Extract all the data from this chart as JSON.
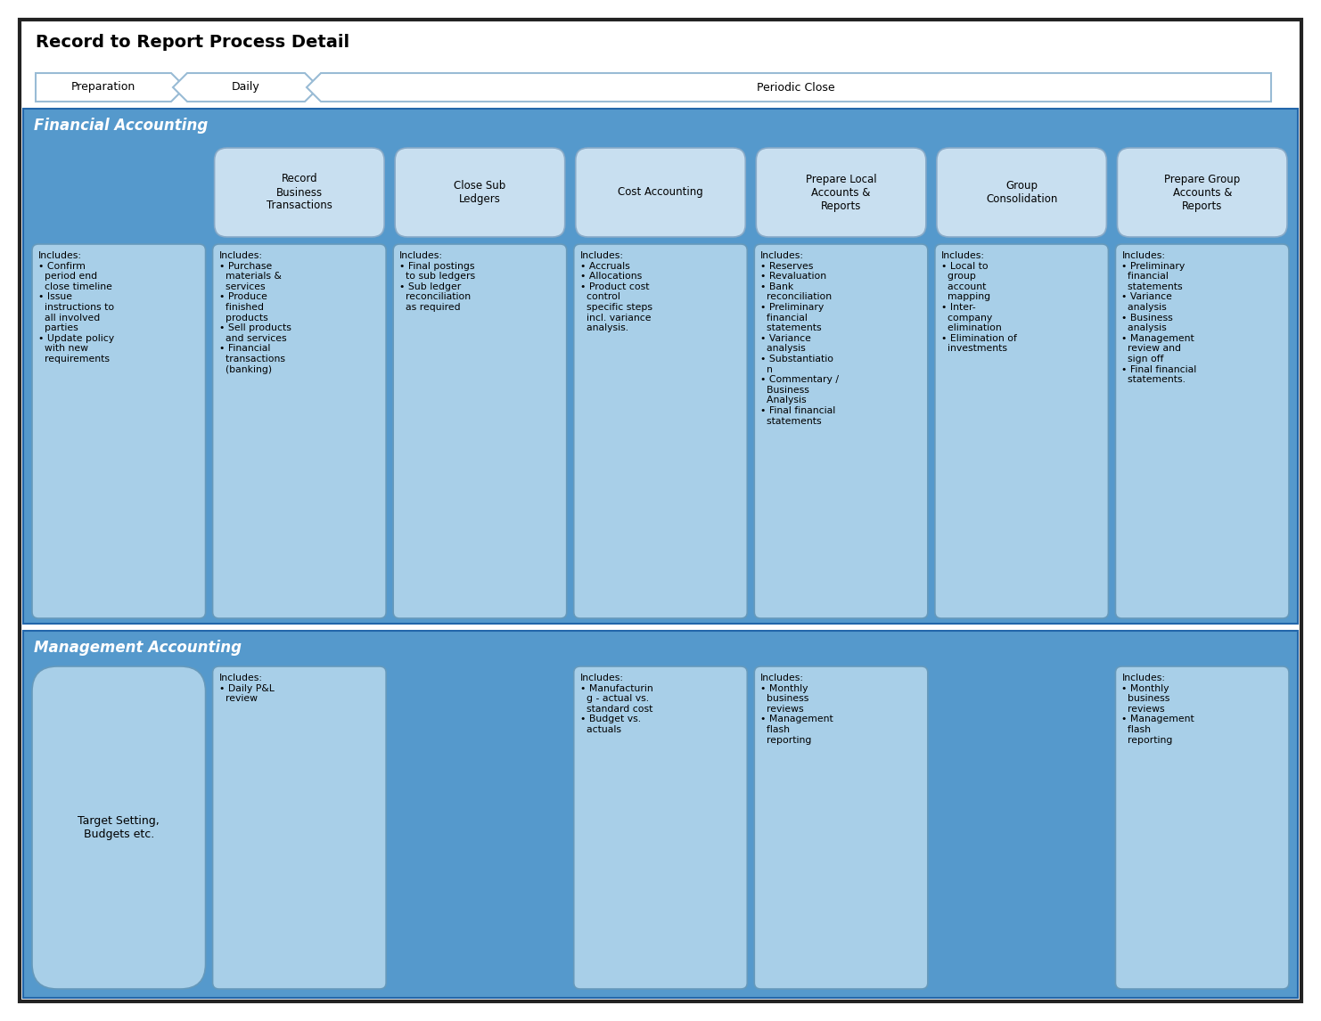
{
  "title": "Record to Report Process Detail",
  "bg_color": "#ffffff",
  "fa_bg": "#5599cc",
  "fa_title": "Financial Accounting",
  "ma_bg": "#5599cc",
  "ma_title": "Management Accounting",
  "fa_process_boxes": [
    "Record\nBusiness\nTransactions",
    "Close Sub\nLedgers",
    "Cost Accounting",
    "Prepare Local\nAccounts &\nReports",
    "Group\nConsolidation",
    "Prepare Group\nAccounts &\nReports"
  ],
  "fa_detail_col0": "Includes:\n• Confirm\n  period end\n  close timeline\n• Issue\n  instructions to\n  all involved\n  parties\n• Update policy\n  with new\n  requirements",
  "fa_detail_cols": [
    "Includes:\n• Purchase\n  materials &\n  services\n• Produce\n  finished\n  products\n• Sell products\n  and services\n• Financial\n  transactions\n  (banking)",
    "Includes:\n• Final postings\n  to sub ledgers\n• Sub ledger\n  reconciliation\n  as required",
    "Includes:\n• Accruals\n• Allocations\n• Product cost\n  control\n  specific steps\n  incl. variance\n  analysis.",
    "Includes:\n• Reserves\n• Revaluation\n• Bank\n  reconciliation\n• Preliminary\n  financial\n  statements\n• Variance\n  analysis\n• Substantiatio\n  n\n• Commentary /\n  Business\n  Analysis\n• Final financial\n  statements",
    "Includes:\n• Local to\n  group\n  account\n  mapping\n• Inter-\n  company\n  elimination\n• Elimination of\n  investments",
    "Includes:\n• Preliminary\n  financial\n  statements\n• Variance\n  analysis\n• Business\n  analysis\n• Management\n  review and\n  sign off\n• Final financial\n  statements."
  ],
  "ma_col0_oval": "Target Setting,\nBudgets etc.",
  "ma_col1": "Includes:\n• Daily P&L\n  review",
  "ma_col3": "Includes:\n• Manufacturin\n  g - actual vs.\n  standard cost\n• Budget vs.\n  actuals",
  "ma_col4": "Includes:\n• Monthly\n  business\n  reviews\n• Management\n  flash\n  reporting",
  "ma_col6": "Includes:\n• Monthly\n  business\n  reviews\n• Management\n  flash\n  reporting",
  "detail_box_color": "#a8cfe8",
  "detail_box_edge": "#6699bb",
  "proc_box_color": "#c8dff0",
  "proc_box_edge": "#88aac8"
}
